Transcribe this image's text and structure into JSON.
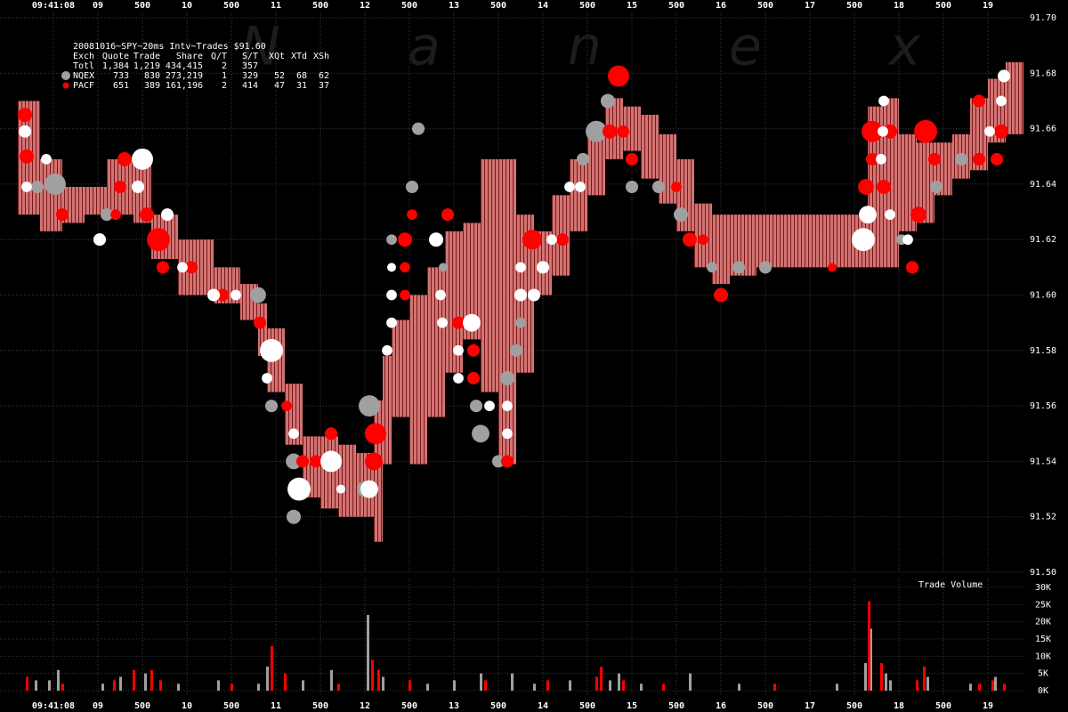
{
  "chart_data": [
    {
      "type": "scatter",
      "title": "20081016~SPY~20ms Intv~Trades $91.60",
      "watermark": "N a n e x",
      "legend_table": {
        "header": [
          "Exch",
          "Quote",
          "Trade",
          "Share",
          "Q/T",
          "S/T",
          "XQt",
          "XTd",
          "XSh"
        ],
        "rows": [
          [
            "Totl",
            "1,384",
            "1,219",
            "434,415",
            "2",
            "357"
          ],
          [
            "NQEX",
            "733",
            "830",
            "273,219",
            "1",
            "329",
            "52",
            "68",
            "62"
          ],
          [
            "PACF",
            "651",
            "389",
            "161,196",
            "2",
            "414",
            "47",
            "31",
            "37"
          ]
        ]
      },
      "xlim": [
        7.9,
        19.4
      ],
      "xticks": [
        {
          "value": 8.5,
          "label": "09:41:08"
        },
        {
          "value": 9,
          "label": "09"
        },
        {
          "value": 9.5,
          "label": "500"
        },
        10,
        {
          "value": 10.5,
          "label": "500"
        },
        11,
        {
          "value": 11.5,
          "label": "500"
        },
        12,
        {
          "value": 12.5,
          "label": "500"
        },
        13,
        {
          "value": 13.5,
          "label": "500"
        },
        14,
        {
          "value": 14.5,
          "label": "500"
        },
        15,
        {
          "value": 15.5,
          "label": "500"
        },
        16,
        {
          "value": 16.5,
          "label": "500"
        },
        17,
        {
          "value": 17.5,
          "label": "500"
        },
        18,
        {
          "value": 18.5,
          "label": "500"
        },
        19
      ],
      "ylim": [
        91.5,
        91.7
      ],
      "yticks": [
        {
          "value": 91.5,
          "label": "91.50"
        },
        91.52,
        91.54,
        91.56,
        91.58,
        {
          "value": 91.6,
          "label": "91.60"
        },
        91.62,
        91.64,
        91.66,
        91.68,
        {
          "value": 91.7,
          "label": "91.70"
        }
      ],
      "grid": true,
      "quote_band": {
        "color": "#f08080",
        "x": [
          8.1,
          8.35,
          8.6,
          8.85,
          9.1,
          9.4,
          9.6,
          9.9,
          10.3,
          10.6,
          10.8,
          10.9,
          11.1,
          11.3,
          11.5,
          11.7,
          11.9,
          12.1,
          12.2,
          12.3,
          12.5,
          12.7,
          12.9,
          13.1,
          13.3,
          13.5,
          13.7,
          13.9,
          14.1,
          14.3,
          14.5,
          14.7,
          14.9,
          15.1,
          15.3,
          15.5,
          15.7,
          15.9,
          16.1,
          16.4,
          16.7,
          17.0,
          17.4,
          17.65,
          17.8,
          18.0,
          18.2,
          18.4,
          18.6,
          18.8,
          19.0,
          19.2
        ],
        "high": [
          91.67,
          91.649,
          91.639,
          91.639,
          91.649,
          91.649,
          91.629,
          91.62,
          91.61,
          91.604,
          91.597,
          91.588,
          91.568,
          91.549,
          91.549,
          91.546,
          91.543,
          91.562,
          91.578,
          91.591,
          91.6,
          91.61,
          91.623,
          91.626,
          91.649,
          91.649,
          91.629,
          91.623,
          91.636,
          91.649,
          91.658,
          91.671,
          91.668,
          91.665,
          91.658,
          91.649,
          91.633,
          91.629,
          91.629,
          91.629,
          91.629,
          91.629,
          91.629,
          91.668,
          91.671,
          91.658,
          91.655,
          91.655,
          91.658,
          91.671,
          91.678,
          91.684
        ],
        "low": [
          91.629,
          91.623,
          91.626,
          91.629,
          91.629,
          91.626,
          91.613,
          91.6,
          91.597,
          91.591,
          91.578,
          91.565,
          91.546,
          91.527,
          91.523,
          91.52,
          91.52,
          91.511,
          91.539,
          91.556,
          91.539,
          91.556,
          91.572,
          91.584,
          91.565,
          91.539,
          91.572,
          91.6,
          91.607,
          91.623,
          91.636,
          91.649,
          91.652,
          91.642,
          91.633,
          91.623,
          91.61,
          91.604,
          91.607,
          91.61,
          91.61,
          91.61,
          91.61,
          91.61,
          91.61,
          91.623,
          91.626,
          91.636,
          91.642,
          91.645,
          91.655,
          91.658
        ]
      },
      "series": [
        {
          "name": "NQEX",
          "color": "#a0a0a0",
          "x": [
            8.32,
            8.52,
            9.1,
            10.8,
            10.95,
            11.2,
            11.2,
            12.0,
            12.05,
            12.3,
            12.53,
            12.6,
            12.88,
            13.25,
            13.3,
            13.6,
            13.5,
            13.7,
            13.75,
            14.45,
            14.6,
            14.73,
            15.0,
            15.3,
            15.55,
            15.9,
            16.2,
            16.5,
            18.03,
            18.42,
            18.7
          ],
          "values": [
            91.639,
            91.64,
            91.629,
            91.6,
            91.56,
            91.54,
            91.52,
            91.53,
            91.56,
            91.62,
            91.639,
            91.66,
            91.61,
            91.56,
            91.55,
            91.57,
            91.54,
            91.58,
            91.59,
            91.649,
            91.659,
            91.67,
            91.639,
            91.639,
            91.629,
            91.61,
            91.61,
            91.61,
            91.62,
            91.639,
            91.649
          ],
          "sizes": [
            1000,
            2900,
            1000,
            1600,
            1000,
            1600,
            1300,
            1600,
            2900,
            700,
            1000,
            1000,
            500,
            1000,
            2000,
            1300,
            1000,
            1000,
            700,
            1000,
            2900,
            1300,
            1000,
            1000,
            1300,
            700,
            1000,
            1000,
            700,
            1000,
            1000
          ]
        },
        {
          "name": "PACF",
          "color": "#ff0000",
          "x": [
            8.18,
            8.2,
            8.6,
            9.2,
            9.3,
            9.25,
            9.55,
            9.68,
            9.73,
            10.05,
            10.4,
            10.82,
            11.12,
            11.3,
            11.45,
            11.62,
            12.12,
            12.1,
            12.45,
            12.45,
            12.45,
            12.53,
            12.93,
            13.05,
            13.22,
            13.22,
            13.6,
            13.88,
            14.22,
            14.75,
            14.85,
            14.9,
            15.0,
            15.5,
            15.65,
            15.8,
            16.0,
            17.25,
            17.63,
            17.83,
            18.15,
            18.22,
            18.3,
            18.4,
            17.7,
            17.9,
            17.7,
            18.9,
            19.1,
            18.9,
            19.15
          ],
          "values": [
            91.665,
            91.65,
            91.629,
            91.629,
            91.649,
            91.639,
            91.629,
            91.62,
            91.61,
            91.61,
            91.6,
            91.59,
            91.56,
            91.54,
            91.54,
            91.55,
            91.55,
            91.54,
            91.6,
            91.61,
            91.62,
            91.629,
            91.629,
            91.59,
            91.57,
            91.58,
            91.54,
            91.62,
            91.62,
            91.659,
            91.679,
            91.659,
            91.649,
            91.639,
            91.62,
            91.62,
            91.6,
            91.61,
            91.639,
            91.639,
            91.61,
            91.629,
            91.659,
            91.649,
            91.659,
            91.659,
            91.649,
            91.649,
            91.649,
            91.67,
            91.659
          ],
          "sizes": [
            1300,
            1300,
            1000,
            700,
            1300,
            1000,
            1300,
            3400,
            1000,
            1000,
            1000,
            1000,
            700,
            1000,
            1000,
            1000,
            2900,
            2000,
            700,
            700,
            1300,
            700,
            1000,
            1000,
            1000,
            1000,
            1000,
            2500,
            1000,
            1300,
            2900,
            1000,
            1000,
            700,
            1300,
            700,
            1300,
            500,
            1600,
            1300,
            1000,
            1600,
            3400,
            1000,
            2900,
            1300,
            1000,
            1000,
            1000,
            1000,
            1300
          ]
        },
        {
          "color": "#ffffff",
          "x": [
            8.18,
            8.2,
            8.42,
            9.02,
            9.5,
            9.45,
            9.78,
            9.95,
            10.3,
            10.55,
            10.95,
            10.9,
            11.2,
            11.26,
            11.62,
            11.73,
            12.05,
            12.25,
            12.3,
            12.3,
            12.3,
            12.8,
            12.85,
            12.87,
            13.2,
            13.05,
            13.05,
            13.4,
            13.6,
            13.6,
            13.75,
            13.9,
            13.75,
            14.0,
            14.1,
            14.3,
            14.42,
            17.6,
            17.65,
            17.9,
            18.1,
            17.82,
            17.83,
            17.8,
            19.02,
            19.15,
            19.18
          ],
          "values": [
            91.659,
            91.639,
            91.649,
            91.62,
            91.649,
            91.639,
            91.629,
            91.61,
            91.6,
            91.6,
            91.58,
            91.57,
            91.55,
            91.53,
            91.54,
            91.53,
            91.53,
            91.58,
            91.59,
            91.6,
            91.61,
            91.62,
            91.6,
            91.59,
            91.59,
            91.58,
            91.57,
            91.56,
            91.56,
            91.55,
            91.6,
            91.6,
            91.61,
            91.61,
            91.62,
            91.639,
            91.639,
            91.62,
            91.629,
            91.629,
            91.62,
            91.659,
            91.67,
            91.649,
            91.659,
            91.67,
            91.679
          ],
          "sizes": [
            1000,
            700,
            700,
            1000,
            2900,
            1000,
            1000,
            700,
            1000,
            700,
            3400,
            700,
            700,
            3400,
            2900,
            500,
            2000,
            700,
            700,
            700,
            500,
            1300,
            700,
            700,
            2000,
            700,
            700,
            700,
            700,
            700,
            1000,
            1000,
            700,
            1000,
            700,
            700,
            700,
            3400,
            2000,
            700,
            700,
            700,
            700,
            700,
            700,
            700,
            1000
          ]
        }
      ]
    },
    {
      "type": "bar",
      "title": "Trade Volume",
      "xlim": [
        7.9,
        19.4
      ],
      "xticks": [
        {
          "value": 8.5,
          "label": "09:41:08"
        },
        {
          "value": 9,
          "label": "09"
        },
        {
          "value": 9.5,
          "label": "500"
        },
        10,
        {
          "value": 10.5,
          "label": "500"
        },
        11,
        {
          "value": 11.5,
          "label": "500"
        },
        12,
        {
          "value": 12.5,
          "label": "500"
        },
        13,
        {
          "value": 13.5,
          "label": "500"
        },
        14,
        {
          "value": 14.5,
          "label": "500"
        },
        15,
        {
          "value": 15.5,
          "label": "500"
        },
        16,
        {
          "value": 16.5,
          "label": "500"
        },
        17,
        {
          "value": 17.5,
          "label": "500"
        },
        18,
        {
          "value": 18.5,
          "label": "500"
        },
        19
      ],
      "ylim": [
        0,
        30000
      ],
      "yticks": [
        {
          "value": 0,
          "label": "0K"
        },
        {
          "value": 5000,
          "label": "5K"
        },
        {
          "value": 10000,
          "label": "10K"
        },
        {
          "value": 15000,
          "label": "15K"
        },
        {
          "value": 20000,
          "label": "20K"
        },
        {
          "value": 25000,
          "label": "25K"
        },
        {
          "value": 30000,
          "label": "30K"
        }
      ],
      "grid": true,
      "series": [
        {
          "color": "#a0a0a0",
          "x": [
            8.3,
            8.45,
            8.55,
            9.05,
            9.25,
            9.53,
            9.9,
            10.35,
            10.8,
            10.9,
            11.3,
            11.62,
            12.03,
            12.2,
            12.7,
            13.0,
            13.3,
            13.65,
            13.9,
            14.3,
            14.75,
            14.85,
            15.1,
            15.65,
            16.2,
            17.3,
            17.62,
            17.68,
            17.85,
            17.9,
            18.32,
            18.8,
            19.08
          ],
          "values": [
            3000,
            3000,
            6000,
            2000,
            4000,
            5000,
            2000,
            3000,
            2000,
            7000,
            3000,
            6000,
            22000,
            4000,
            2000,
            3000,
            5000,
            5000,
            2000,
            3000,
            3000,
            5000,
            2000,
            5000,
            2000,
            2000,
            8000,
            18000,
            5000,
            3000,
            4000,
            2000,
            4000
          ]
        },
        {
          "color": "#ff0000",
          "x": [
            8.2,
            8.6,
            9.18,
            9.4,
            9.6,
            9.7,
            10.5,
            10.95,
            11.1,
            11.7,
            12.08,
            12.15,
            12.5,
            13.35,
            14.05,
            14.6,
            14.65,
            14.9,
            15.35,
            16.6,
            17.66,
            17.8,
            18.2,
            18.28,
            18.9,
            19.05,
            19.18
          ],
          "values": [
            4000,
            2000,
            3000,
            6000,
            6000,
            3000,
            2000,
            13000,
            5000,
            2000,
            9000,
            6000,
            3000,
            3000,
            3000,
            4000,
            7000,
            3000,
            2000,
            2000,
            26000,
            8000,
            3000,
            7000,
            2000,
            3000,
            2000
          ]
        }
      ]
    }
  ]
}
